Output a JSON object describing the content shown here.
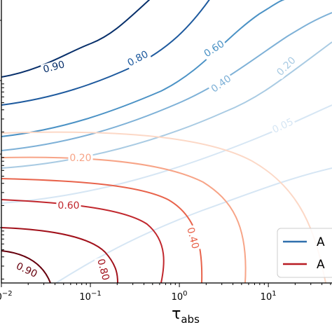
{
  "chart_data": {
    "type": "contour",
    "xlabel": "τ_abs",
    "x_scale": "log",
    "xlim": [
      0.01,
      60
    ],
    "ylim": [
      0,
      1
    ],
    "y_scale": "log",
    "grid": false,
    "x_ticks": [
      {
        "value": 0.01,
        "base": "10",
        "exp": "−2"
      },
      {
        "value": 0.1,
        "base": "10",
        "exp": "−1"
      },
      {
        "value": 1,
        "base": "10",
        "exp": "0"
      },
      {
        "value": 10,
        "base": "10",
        "exp": "1"
      }
    ],
    "legend": {
      "placement": "lower-right",
      "entries": [
        {
          "label": "A",
          "color": "#2f6fad"
        },
        {
          "label": "A",
          "color": "#b81b22"
        }
      ]
    },
    "blue_levels": [
      {
        "level": 0.05,
        "label": "0.05",
        "color": "#d6e6f4"
      },
      {
        "level": 0.2,
        "label": "0.20",
        "color": "#a9cbe3"
      },
      {
        "level": 0.4,
        "label": "0.40",
        "color": "#7eb1d7"
      },
      {
        "level": 0.6,
        "label": "0.60",
        "color": "#4b92c5"
      },
      {
        "level": 0.8,
        "label": "0.80",
        "color": "#1e5a9e"
      },
      {
        "level": 0.9,
        "label": "0.90",
        "color": "#08306b"
      }
    ],
    "red_levels": [
      {
        "level": 0.05,
        "label": "",
        "color": "#fcd8c6"
      },
      {
        "level": 0.2,
        "label": "0.20",
        "color": "#f7a487"
      },
      {
        "level": 0.4,
        "label": "0.40",
        "color": "#e8634b"
      },
      {
        "level": 0.6,
        "label": "0.60",
        "color": "#c1272d"
      },
      {
        "level": 0.8,
        "label": "0.80",
        "color": "#a2111b"
      },
      {
        "level": 0.9,
        "label": "0.90",
        "color": "#67000d"
      }
    ]
  }
}
